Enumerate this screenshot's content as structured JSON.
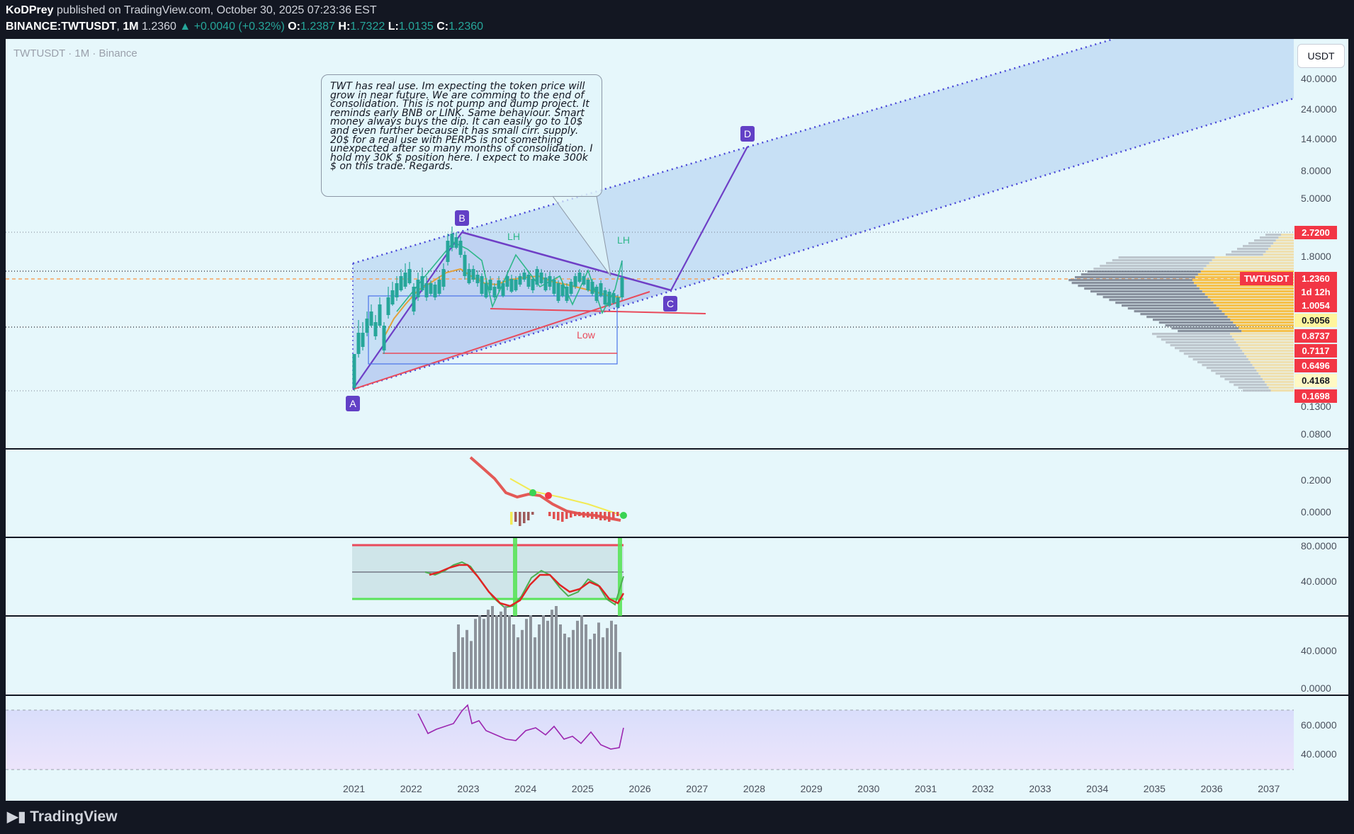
{
  "header": {
    "author": "KoDPrey",
    "published_text": "published on TradingView.com, October 30, 2025 07:23:36 EST",
    "symbol": "BINANCE:TWTUSDT",
    "interval": "1M",
    "last": "1.2360",
    "change": "+0.0040 (+0.32%)",
    "ohlc": {
      "o_label": "O:",
      "o": "1.2387",
      "h_label": "H:",
      "h": "1.7322",
      "l_label": "L:",
      "l": "1.0135",
      "c_label": "C:",
      "c": "1.2360"
    }
  },
  "chart_title": "TWTUSDT · 1M · Binance",
  "currency_button": "USDT",
  "note_text": "TWT has real use. Im expecting the token price will grow in near future. We are comming to the end of consolidation. This is not pump and dump project. It reminds early BNB or LINK. Same behaviour. Smart money always buys the dip. It can easily go to 10$ and even further because it has small cirr. supply. 20$ for a real use with PERPS is not something unexpected after so many months of consolidation. I hold my 30K $ position here. I expect to make 300k $ on this trade. Regards.",
  "labels": {
    "A": "A",
    "B": "B",
    "C": "C",
    "D": "D",
    "lh1": "LH",
    "lh2": "LH",
    "low": "Low"
  },
  "price_axis": [
    "40.0000",
    "24.0000",
    "14.0000",
    "8.0000",
    "5.0000",
    "1.8000",
    "0.1300",
    "0.0800"
  ],
  "price_tags": [
    {
      "text": "2.7200",
      "bg": "#f23645",
      "fg": "#ffffff"
    },
    {
      "text": "TWTUSDT",
      "bg": "#f23645",
      "fg": "#ffffff"
    },
    {
      "text": "1.2360",
      "bg": "#f23645",
      "fg": "#ffffff"
    },
    {
      "text": "1d 12h",
      "bg": "#f23645",
      "fg": "#ffffff"
    },
    {
      "text": "1.0054",
      "bg": "#f23645",
      "fg": "#ffffff"
    },
    {
      "text": "0.9056",
      "bg": "#fff59d",
      "fg": "#131722"
    },
    {
      "text": "0.8737",
      "bg": "#f23645",
      "fg": "#ffffff"
    },
    {
      "text": "0.7117",
      "bg": "#f23645",
      "fg": "#ffffff"
    },
    {
      "text": "0.6496",
      "bg": "#f23645",
      "fg": "#ffffff"
    },
    {
      "text": "0.4168",
      "bg": "#fff9c4",
      "fg": "#131722"
    },
    {
      "text": "0.1698",
      "bg": "#f23645",
      "fg": "#ffffff"
    }
  ],
  "pane2_axis": [
    "0.2000",
    "0.0000"
  ],
  "pane3_axis": [
    "80.0000",
    "40.0000"
  ],
  "pane4_axis": [
    "40.0000",
    "0.0000"
  ],
  "pane5_axis": [
    "60.0000",
    "40.0000"
  ],
  "time_axis": [
    "2021",
    "2022",
    "2023",
    "2024",
    "2025",
    "2026",
    "2027",
    "2028",
    "2029",
    "2030",
    "2031",
    "2032",
    "2033",
    "2034",
    "2035",
    "2036",
    "2037"
  ],
  "brand": "TradingView",
  "chart_data": [
    {
      "type": "candlestick",
      "title": "TWTUSDT · 1M · Binance",
      "y_scale": "log",
      "last_price": 1.236,
      "pattern_points": [
        {
          "label": "A",
          "date": "2021-01",
          "price": 0.1698
        },
        {
          "label": "B",
          "date": "2022-11",
          "price": 2.72
        },
        {
          "label": "C",
          "date": "2026-08",
          "price": 1.0
        },
        {
          "label": "D",
          "date": "2027-11",
          "price": 12.0
        }
      ],
      "annotations": [
        "LH",
        "LH",
        "Low"
      ],
      "channel": "rising parallel channel (dotted)",
      "horizontal_levels": [
        2.72,
        1.236,
        0.9056,
        0.1698
      ]
    },
    {
      "type": "bar",
      "name": "",
      "axis": [
        "0.2000",
        "0.0000"
      ]
    },
    {
      "type": "line",
      "name": "",
      "axis": [
        "80.0000",
        "40.0000"
      ],
      "bands": [
        80,
        40,
        20
      ]
    },
    {
      "type": "bar",
      "name": "",
      "axis": [
        "40.0000",
        "0.0000"
      ]
    },
    {
      "type": "line",
      "name": "",
      "axis": [
        "60.0000",
        "40.0000"
      ]
    }
  ]
}
